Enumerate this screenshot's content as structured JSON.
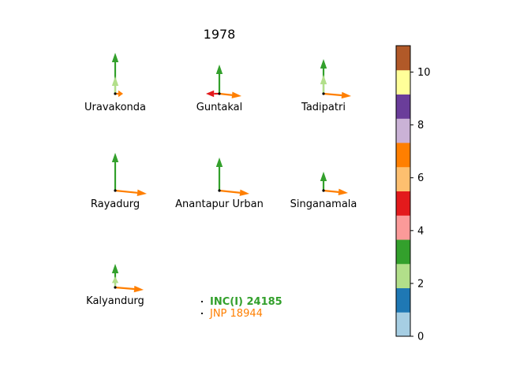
{
  "chart_data": {
    "type": "vector-glyph",
    "title": "1978",
    "stations": [
      {
        "name": "Uravakonda",
        "vectors": [
          {
            "color": "#33a02c",
            "dx": 0,
            "dy": 52
          },
          {
            "color": "#b2df8a",
            "dx": 0,
            "dy": 22
          },
          {
            "color": "#ff7f00",
            "dx": 10,
            "dy": 0
          }
        ]
      },
      {
        "name": "Guntakal",
        "vectors": [
          {
            "color": "#33a02c",
            "dx": 0,
            "dy": 37
          },
          {
            "color": "#e31a1c",
            "dx": -17,
            "dy": 0
          },
          {
            "color": "#ff7f00",
            "dx": 28,
            "dy": -3
          }
        ]
      },
      {
        "name": "Tadipatri",
        "vectors": [
          {
            "color": "#33a02c",
            "dx": 0,
            "dy": 44
          },
          {
            "color": "#b2df8a",
            "dx": 0,
            "dy": 24
          },
          {
            "color": "#ff7f00",
            "dx": 35,
            "dy": -3
          }
        ]
      },
      {
        "name": "Rayadurg",
        "vectors": [
          {
            "color": "#33a02c",
            "dx": 0,
            "dy": 48
          },
          {
            "color": "#ff7f00",
            "dx": 40,
            "dy": -4
          }
        ]
      },
      {
        "name": "Anantapur Urban",
        "vectors": [
          {
            "color": "#33a02c",
            "dx": 0,
            "dy": 42
          },
          {
            "color": "#ff7f00",
            "dx": 38,
            "dy": -4
          }
        ]
      },
      {
        "name": "Singanamala",
        "vectors": [
          {
            "color": "#33a02c",
            "dx": 0,
            "dy": 24
          },
          {
            "color": "#ff7f00",
            "dx": 31,
            "dy": -3
          }
        ]
      },
      {
        "name": "Kalyandurg",
        "vectors": [
          {
            "color": "#33a02c",
            "dx": 0,
            "dy": 30
          },
          {
            "color": "#b2df8a",
            "dx": 0,
            "dy": 14
          },
          {
            "color": "#ff7f00",
            "dx": 36,
            "dy": -3
          }
        ]
      }
    ],
    "legend": [
      {
        "label": "INC(I) 24185",
        "color": "#33a02c",
        "bold": true
      },
      {
        "label": "JNP 18944",
        "color": "#ff7f00",
        "bold": false
      }
    ],
    "colorbar": {
      "min": 0,
      "max": 11,
      "ticks": [
        "0",
        "2",
        "4",
        "6",
        "8",
        "10"
      ],
      "colors": [
        "#a6cee3",
        "#1f78b4",
        "#b2df8a",
        "#33a02c",
        "#fb9a99",
        "#e31a1c",
        "#fdbf6f",
        "#ff7f00",
        "#cab2d6",
        "#6a3d9a",
        "#ffff99",
        "#b15928"
      ]
    }
  }
}
